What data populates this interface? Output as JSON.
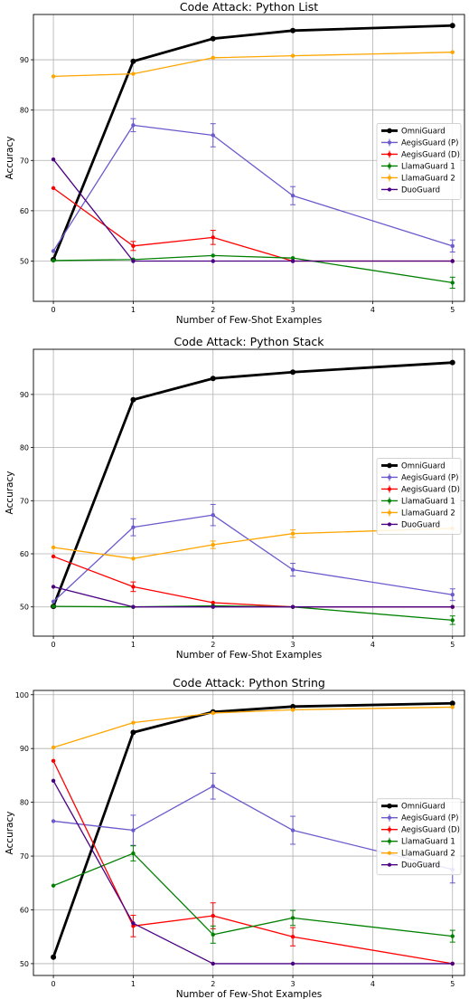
{
  "chart_data": [
    {
      "type": "line",
      "title": "Code Attack: Python List",
      "xlabel": "Number of Few-Shot Examples",
      "ylabel": "Accuracy",
      "x": [
        0,
        1,
        2,
        3,
        4,
        5
      ],
      "xticks": [
        "0",
        "1",
        "2",
        "3",
        "4",
        "5"
      ],
      "yticks": [
        "50",
        "60",
        "70",
        "80",
        "90"
      ],
      "xlim": [
        -0.25,
        5.15
      ],
      "ylim": [
        42,
        99
      ],
      "grid": true,
      "legend": "right",
      "series": [
        {
          "name": "OmniGuard",
          "color": "#000000",
          "x": [
            0,
            1,
            2,
            3,
            5
          ],
          "values": [
            50.3,
            89.7,
            94.2,
            95.8,
            96.8
          ],
          "err": null
        },
        {
          "name": "AegisGuard (P)",
          "color": "#6a5acd",
          "x": [
            0,
            1,
            2,
            3,
            5
          ],
          "values": [
            52.0,
            77.0,
            75.0,
            63.0,
            53.0
          ],
          "err": [
            0,
            1.3,
            2.3,
            1.8,
            1.2
          ]
        },
        {
          "name": "AegisGuard (D)",
          "color": "#ff0000",
          "x": [
            0,
            1,
            2,
            3,
            5
          ],
          "values": [
            64.5,
            53.0,
            54.7,
            50.0,
            50.0
          ],
          "err": [
            0,
            0.9,
            1.4,
            0,
            0
          ]
        },
        {
          "name": "LlamaGuard 1",
          "color": "#008000",
          "x": [
            0,
            1,
            2,
            3,
            5
          ],
          "values": [
            50.1,
            50.3,
            51.1,
            50.6,
            45.7
          ],
          "err": [
            0,
            0,
            0,
            0,
            1.1
          ]
        },
        {
          "name": "LlamaGuard 2",
          "color": "#ffa500",
          "x": [
            0,
            1,
            2,
            3,
            5
          ],
          "values": [
            86.7,
            87.2,
            90.4,
            90.8,
            91.5
          ],
          "err": [
            0,
            0,
            0,
            0,
            0
          ]
        },
        {
          "name": "DuoGuard",
          "color": "#4b0082",
          "x": [
            0,
            1,
            2,
            3,
            5
          ],
          "values": [
            70.2,
            50.0,
            50.0,
            50.0,
            50.0
          ],
          "err": null
        }
      ]
    },
    {
      "type": "line",
      "title": "Code Attack: Python Stack",
      "xlabel": "Number of Few-Shot Examples",
      "ylabel": "Accuracy",
      "x": [
        0,
        1,
        2,
        3,
        4,
        5
      ],
      "xticks": [
        "0",
        "1",
        "2",
        "3",
        "4",
        "5"
      ],
      "yticks": [
        "50",
        "60",
        "70",
        "80",
        "90"
      ],
      "xlim": [
        -0.25,
        5.15
      ],
      "ylim": [
        44.5,
        98.5
      ],
      "grid": true,
      "legend": "right",
      "series": [
        {
          "name": "OmniGuard",
          "color": "#000000",
          "x": [
            0,
            1,
            2,
            3,
            5
          ],
          "values": [
            50.1,
            89.0,
            93.0,
            94.2,
            96.0
          ],
          "err": null
        },
        {
          "name": "AegisGuard (P)",
          "color": "#6a5acd",
          "x": [
            0,
            1,
            2,
            3,
            5
          ],
          "values": [
            51.0,
            65.0,
            67.3,
            57.0,
            52.3
          ],
          "err": [
            0,
            1.6,
            2.0,
            1.2,
            1.1
          ]
        },
        {
          "name": "AegisGuard (D)",
          "color": "#ff0000",
          "x": [
            0,
            1,
            2,
            3,
            5
          ],
          "values": [
            59.5,
            53.8,
            50.8,
            50.0,
            50.0
          ],
          "err": [
            0,
            0.9,
            0,
            0,
            0
          ]
        },
        {
          "name": "LlamaGuard 1",
          "color": "#008000",
          "x": [
            0,
            1,
            2,
            3,
            5
          ],
          "values": [
            50.1,
            50.0,
            50.2,
            50.0,
            47.5
          ],
          "err": [
            0,
            0,
            0,
            0,
            0.8
          ]
        },
        {
          "name": "LlamaGuard 2",
          "color": "#ffa500",
          "x": [
            0,
            1,
            2,
            3,
            5
          ],
          "values": [
            61.2,
            59.1,
            61.7,
            63.8,
            64.8
          ],
          "err": [
            0,
            0,
            0.7,
            0.7,
            0
          ]
        },
        {
          "name": "DuoGuard",
          "color": "#4b0082",
          "x": [
            0,
            1,
            2,
            3,
            5
          ],
          "values": [
            53.8,
            50.0,
            50.0,
            50.0,
            50.0
          ],
          "err": null
        }
      ]
    },
    {
      "type": "line",
      "title": "Code Attack: Python String",
      "xlabel": "Number of Few-Shot Examples",
      "ylabel": "Accuracy",
      "x": [
        0,
        1,
        2,
        3,
        4,
        5
      ],
      "xticks": [
        "0",
        "1",
        "2",
        "3",
        "4",
        "5"
      ],
      "yticks": [
        "50",
        "60",
        "70",
        "80",
        "90",
        "100"
      ],
      "xlim": [
        -0.25,
        5.15
      ],
      "ylim": [
        47.8,
        100.8
      ],
      "grid": true,
      "legend": "right",
      "series": [
        {
          "name": "OmniGuard",
          "color": "#000000",
          "x": [
            0,
            1,
            2,
            3,
            5
          ],
          "values": [
            51.2,
            93.0,
            96.8,
            97.8,
            98.4
          ],
          "err": null
        },
        {
          "name": "AegisGuard (P)",
          "color": "#6a5acd",
          "x": [
            0,
            1,
            2,
            3,
            5
          ],
          "values": [
            76.5,
            74.8,
            83.0,
            74.8,
            67.5
          ],
          "err": [
            0,
            2.8,
            2.4,
            2.6,
            2.5
          ]
        },
        {
          "name": "AegisGuard (D)",
          "color": "#ff0000",
          "x": [
            0,
            1,
            2,
            3,
            5
          ],
          "values": [
            87.7,
            57.0,
            58.9,
            55.0,
            50.0
          ],
          "err": [
            0,
            2.0,
            2.4,
            1.7,
            0
          ]
        },
        {
          "name": "LlamaGuard 1",
          "color": "#008000",
          "x": [
            0,
            1,
            2,
            3,
            5
          ],
          "values": [
            64.5,
            70.5,
            55.4,
            58.5,
            55.1
          ],
          "err": [
            0,
            1.4,
            1.6,
            1.4,
            1.1
          ]
        },
        {
          "name": "LlamaGuard 2",
          "color": "#ffa500",
          "x": [
            0,
            1,
            2,
            3,
            5
          ],
          "values": [
            90.2,
            94.8,
            96.6,
            97.2,
            97.7
          ],
          "err": null
        },
        {
          "name": "DuoGuard",
          "color": "#4b0082",
          "x": [
            0,
            1,
            2,
            3,
            5
          ],
          "values": [
            84.0,
            57.5,
            50.0,
            50.0,
            50.0
          ],
          "err": null
        }
      ]
    }
  ]
}
